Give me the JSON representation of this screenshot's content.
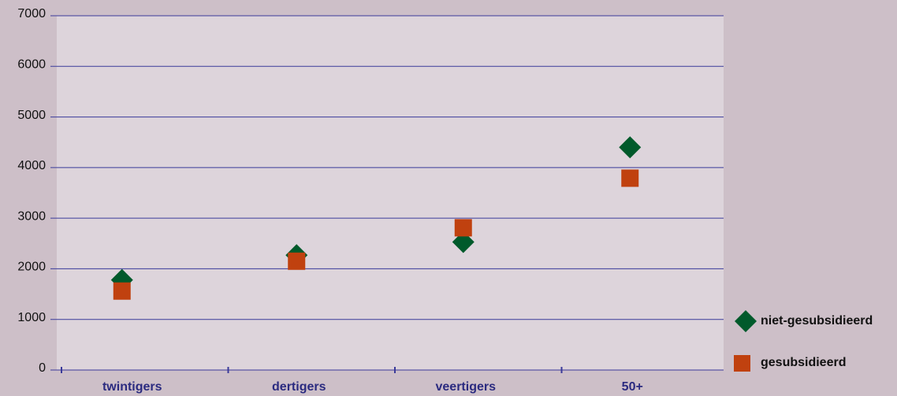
{
  "chart_data": {
    "type": "scatter",
    "categories": [
      "twintigers",
      "dertigers",
      "veertigers",
      "50+"
    ],
    "series": [
      {
        "name": "niet-gesubsidieerd",
        "color": "#005a2b",
        "marker": "diamond",
        "values": [
          1780,
          2270,
          2530,
          4400
        ]
      },
      {
        "name": "gesubsidieerd",
        "color": "#c0410f",
        "marker": "square",
        "values": [
          1560,
          2150,
          2810,
          3790
        ]
      }
    ],
    "ylim": [
      0,
      7000
    ],
    "yticks": [
      0,
      1000,
      2000,
      3000,
      4000,
      5000,
      6000,
      7000
    ],
    "grid": true,
    "legend": "right"
  }
}
